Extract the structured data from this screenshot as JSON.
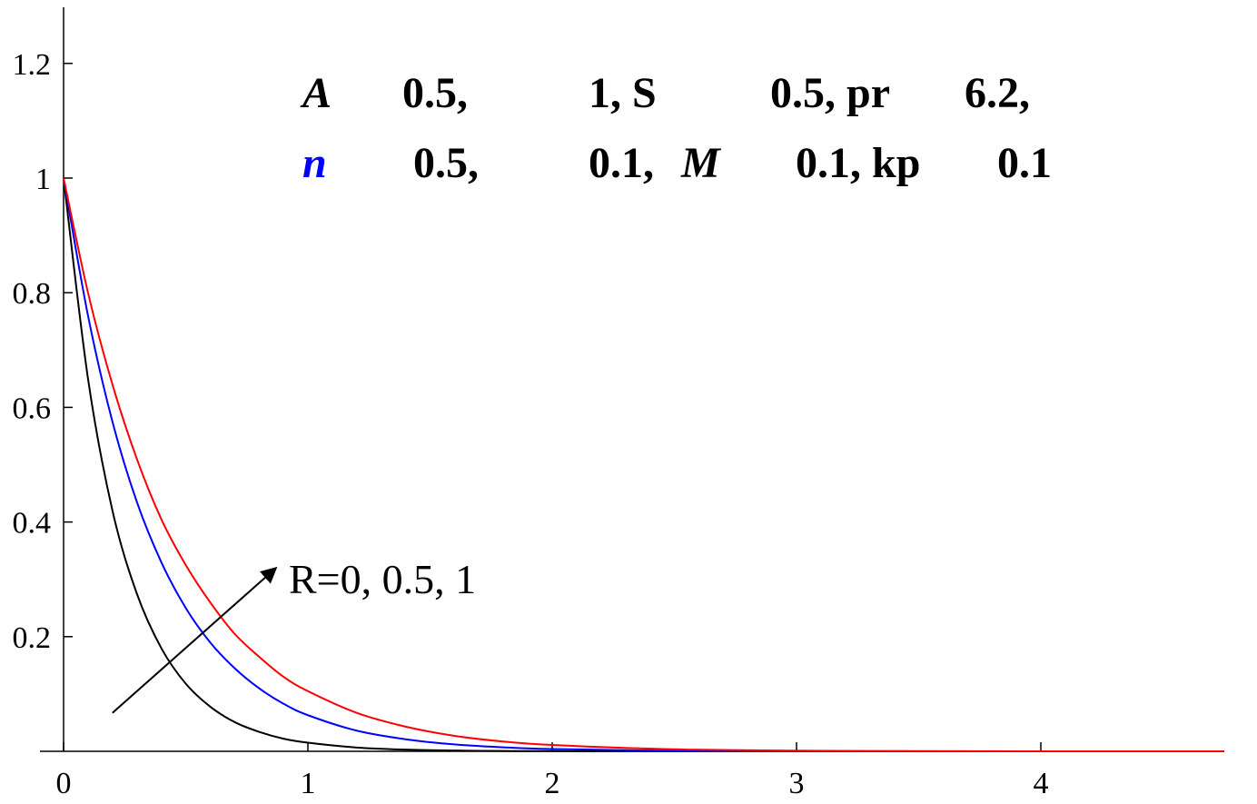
{
  "chart_data": {
    "type": "line",
    "title": "",
    "xlabel": "",
    "ylabel": "",
    "xlim": [
      0,
      4.75
    ],
    "ylim": [
      0,
      1.3
    ],
    "grid": false,
    "x_ticks": [
      "0",
      "1",
      "2",
      "3",
      "4"
    ],
    "y_ticks": [
      "0.2",
      "0.4",
      "0.6",
      "0.8",
      "1",
      "1.2"
    ],
    "series": [
      {
        "color": "#000000",
        "x": [
          0,
          0.1,
          0.2,
          0.3,
          0.4,
          0.5,
          0.6,
          0.7,
          0.8,
          0.9,
          1.0,
          1.2,
          1.4,
          1.6,
          1.8,
          2.0,
          2.5,
          3.0,
          3.5,
          4.0,
          4.5,
          4.75
        ],
        "values": [
          1.0,
          0.65,
          0.42,
          0.275,
          0.18,
          0.118,
          0.078,
          0.051,
          0.034,
          0.022,
          0.015,
          0.0066,
          0.0029,
          0.0013,
          0.0006,
          0.0003,
          5e-05,
          1e-05,
          0,
          0,
          0,
          0
        ]
      },
      {
        "color": "#0000ff",
        "x": [
          0,
          0.1,
          0.2,
          0.3,
          0.4,
          0.5,
          0.6,
          0.7,
          0.8,
          0.9,
          1.0,
          1.2,
          1.4,
          1.6,
          1.8,
          2.0,
          2.5,
          3.0,
          3.5,
          4.0,
          4.5,
          4.75
        ],
        "values": [
          1.0,
          0.76,
          0.575,
          0.435,
          0.33,
          0.25,
          0.19,
          0.145,
          0.11,
          0.083,
          0.063,
          0.036,
          0.021,
          0.012,
          0.007,
          0.004,
          0.001,
          0.0003,
          0.0001,
          0,
          0,
          0
        ]
      },
      {
        "color": "#ff0000",
        "x": [
          0,
          0.1,
          0.2,
          0.3,
          0.4,
          0.5,
          0.6,
          0.7,
          0.8,
          0.9,
          1.0,
          1.2,
          1.4,
          1.6,
          1.8,
          2.0,
          2.5,
          3.0,
          3.5,
          4.0,
          4.5,
          4.75
        ],
        "values": [
          1.0,
          0.8,
          0.64,
          0.51,
          0.405,
          0.325,
          0.26,
          0.205,
          0.165,
          0.13,
          0.105,
          0.067,
          0.043,
          0.027,
          0.017,
          0.011,
          0.0035,
          0.0011,
          0.0004,
          0.0001,
          0,
          0
        ]
      }
    ],
    "parameters": {
      "line1": [
        "A",
        "0.5,",
        "1, S",
        "0.5, pr",
        "6.2,"
      ],
      "line2": [
        "n",
        "0.5,",
        "0.1,",
        "M",
        "0.1, kp",
        "0.1"
      ]
    },
    "annotation": {
      "text": "R=0, 0.5, 1",
      "arrow_from": [
        0.2,
        0.067
      ],
      "arrow_to": [
        0.87,
        0.32
      ]
    }
  }
}
